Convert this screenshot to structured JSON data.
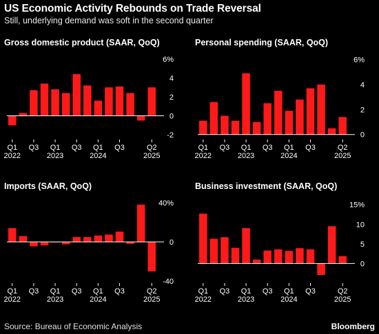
{
  "title": "US Economic Activity Rebounds on Trade Reversal",
  "subtitle": "Still, underlying demand was soft in the second quarter",
  "source": "Source: Bureau of Economic Analysis",
  "brand": "Bloomberg",
  "colors": {
    "bar": "#ff1a1a",
    "background": "#000000",
    "text": "#ffffff",
    "baseline": "#ffffff"
  },
  "chart_data": [
    {
      "type": "bar",
      "title": "Gross domestic product (SAAR, QoQ)",
      "categories": [
        "Q1 2022",
        "Q2 2022",
        "Q3 2022",
        "Q4 2022",
        "Q1 2023",
        "Q2 2023",
        "Q3 2023",
        "Q4 2023",
        "Q1 2024",
        "Q2 2024",
        "Q3 2024",
        "Q4 2024",
        "Q1 2025",
        "Q2 2025"
      ],
      "values": [
        -1.0,
        0.3,
        2.7,
        3.4,
        2.8,
        2.4,
        4.4,
        3.2,
        1.6,
        3.0,
        3.1,
        2.4,
        -0.5,
        3.0
      ],
      "ylim": [
        -2.5,
        6.2
      ],
      "yticks": [
        -2,
        0,
        2,
        4,
        6
      ],
      "ytick_labels": [
        "-2",
        "0",
        "2",
        "4",
        "6%"
      ],
      "xtick_labels": [
        {
          "index": 0,
          "lines": [
            "Q1",
            "2022"
          ]
        },
        {
          "index": 2,
          "lines": [
            "Q3",
            ""
          ]
        },
        {
          "index": 4,
          "lines": [
            "Q1",
            "2023"
          ]
        },
        {
          "index": 6,
          "lines": [
            "Q3",
            ""
          ]
        },
        {
          "index": 8,
          "lines": [
            "Q1",
            "2024"
          ]
        },
        {
          "index": 10,
          "lines": [
            "Q3",
            ""
          ]
        },
        {
          "index": 13,
          "lines": [
            "Q2",
            "2025"
          ]
        }
      ],
      "grid": false
    },
    {
      "type": "bar",
      "title": "Personal spending (SAAR, QoQ)",
      "categories": [
        "Q1 2022",
        "Q2 2022",
        "Q3 2022",
        "Q4 2022",
        "Q1 2023",
        "Q2 2023",
        "Q3 2023",
        "Q4 2023",
        "Q1 2024",
        "Q2 2024",
        "Q3 2024",
        "Q4 2024",
        "Q1 2025",
        "Q2 2025"
      ],
      "values": [
        1.1,
        2.6,
        1.5,
        1.1,
        4.9,
        1.0,
        2.5,
        3.5,
        1.9,
        2.8,
        3.7,
        4.0,
        0.5,
        1.4
      ],
      "ylim": [
        -0.4,
        6.2
      ],
      "yticks": [
        0,
        2,
        4,
        6
      ],
      "ytick_labels": [
        "0",
        "2",
        "4",
        "6%"
      ],
      "xtick_labels": [
        {
          "index": 0,
          "lines": [
            "Q1",
            "2022"
          ]
        },
        {
          "index": 2,
          "lines": [
            "Q3",
            ""
          ]
        },
        {
          "index": 4,
          "lines": [
            "Q1",
            "2023"
          ]
        },
        {
          "index": 6,
          "lines": [
            "Q3",
            ""
          ]
        },
        {
          "index": 8,
          "lines": [
            "Q1",
            "2024"
          ]
        },
        {
          "index": 10,
          "lines": [
            "Q3",
            ""
          ]
        },
        {
          "index": 13,
          "lines": [
            "Q2",
            "2025"
          ]
        }
      ],
      "grid": false
    },
    {
      "type": "bar",
      "title": "Imports (SAAR, QoQ)",
      "categories": [
        "Q1 2022",
        "Q2 2022",
        "Q3 2022",
        "Q4 2022",
        "Q1 2023",
        "Q2 2023",
        "Q3 2023",
        "Q4 2023",
        "Q1 2024",
        "Q2 2024",
        "Q3 2024",
        "Q4 2024",
        "Q1 2025",
        "Q2 2025"
      ],
      "values": [
        14.0,
        6.0,
        -4.5,
        -3.5,
        0.0,
        -2.5,
        5.0,
        5.0,
        6.5,
        7.5,
        10.5,
        -2.0,
        38.0,
        -30.0
      ],
      "ylim": [
        -42,
        42
      ],
      "yticks": [
        -40,
        0,
        40
      ],
      "ytick_labels": [
        "-40",
        "0",
        "40%"
      ],
      "xtick_labels": [
        {
          "index": 0,
          "lines": [
            "Q1",
            "2022"
          ]
        },
        {
          "index": 2,
          "lines": [
            "Q3",
            ""
          ]
        },
        {
          "index": 4,
          "lines": [
            "Q1",
            "2023"
          ]
        },
        {
          "index": 6,
          "lines": [
            "Q3",
            ""
          ]
        },
        {
          "index": 8,
          "lines": [
            "Q1",
            "2024"
          ]
        },
        {
          "index": 10,
          "lines": [
            "Q3",
            ""
          ]
        },
        {
          "index": 13,
          "lines": [
            "Q2",
            "2025"
          ]
        }
      ],
      "grid": false
    },
    {
      "type": "bar",
      "title": "Business investment (SAAR, QoQ)",
      "categories": [
        "Q1 2022",
        "Q2 2022",
        "Q3 2022",
        "Q4 2022",
        "Q1 2023",
        "Q2 2023",
        "Q3 2023",
        "Q4 2023",
        "Q1 2024",
        "Q2 2024",
        "Q3 2024",
        "Q4 2024",
        "Q1 2025",
        "Q2 2025"
      ],
      "values": [
        12.7,
        6.3,
        6.7,
        4.0,
        9.0,
        1.0,
        3.3,
        3.6,
        3.2,
        3.9,
        3.6,
        -2.9,
        9.5,
        1.9
      ],
      "ylim": [
        -5,
        16
      ],
      "yticks": [
        0,
        5,
        10,
        15
      ],
      "ytick_labels": [
        "0",
        "5",
        "10",
        "15%"
      ],
      "xtick_labels": [
        {
          "index": 0,
          "lines": [
            "Q1",
            "2022"
          ]
        },
        {
          "index": 2,
          "lines": [
            "Q3",
            ""
          ]
        },
        {
          "index": 4,
          "lines": [
            "Q1",
            "2023"
          ]
        },
        {
          "index": 6,
          "lines": [
            "Q3",
            ""
          ]
        },
        {
          "index": 8,
          "lines": [
            "Q1",
            "2024"
          ]
        },
        {
          "index": 10,
          "lines": [
            "Q3",
            ""
          ]
        },
        {
          "index": 13,
          "lines": [
            "Q2",
            "2025"
          ]
        }
      ],
      "grid": false
    }
  ]
}
